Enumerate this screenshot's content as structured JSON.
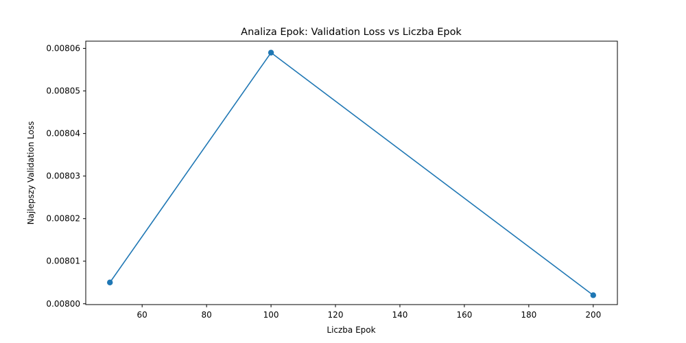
{
  "chart_data": {
    "type": "line",
    "title": "Analiza Epok: Validation Loss vs Liczba Epok",
    "xlabel": "Liczba Epok",
    "ylabel": "Najlepszy Validation Loss",
    "x": [
      50,
      100,
      200
    ],
    "series": [
      {
        "values": [
          0.008005,
          0.008059,
          0.008002
        ],
        "color": "#1f77b4",
        "marker": "circle"
      }
    ],
    "xlim": [
      42.5,
      207.5
    ],
    "ylim": [
      0.0079998,
      0.0080617
    ],
    "xticks": [
      60,
      80,
      100,
      120,
      140,
      160,
      180,
      200
    ],
    "xtick_labels": [
      "60",
      "80",
      "100",
      "120",
      "140",
      "160",
      "180",
      "200"
    ],
    "yticks": [
      0.008,
      0.00801,
      0.00802,
      0.00803,
      0.00804,
      0.00805,
      0.00806
    ],
    "ytick_labels": [
      "0.00800",
      "0.00801",
      "0.00802",
      "0.00803",
      "0.00804",
      "0.00805",
      "0.00806"
    ],
    "grid": false,
    "legend": "none"
  }
}
